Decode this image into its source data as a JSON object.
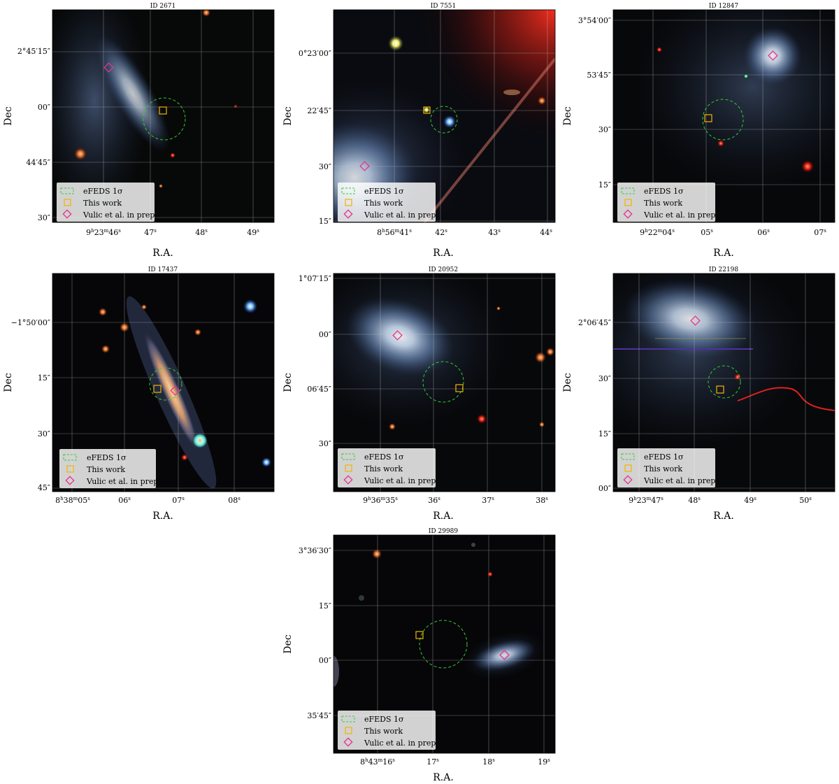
{
  "figure": {
    "axis_x_label": "R.A.",
    "axis_y_label": "Dec",
    "legend": {
      "efeds": "eFEDS 1σ",
      "this_work": "This work",
      "vulic": "Vulic et al. in prep"
    },
    "colors": {
      "efeds": "#33cc33",
      "this_work": "#f0b400",
      "vulic": "#e8338c",
      "grid": "#c8c8c8",
      "background": "#050505"
    },
    "panels": [
      {
        "id_label": "ID 2671",
        "x_ticks": [
          {
            "ra_h": "9",
            "ra_m": "23",
            "ra_s": "46"
          },
          {
            "ra_s": "47"
          },
          {
            "ra_s": "48"
          },
          {
            "ra_s": "49"
          }
        ],
        "y_ticks": [
          "2°45′15″",
          "00″",
          "44′45″",
          "30″"
        ]
      },
      {
        "id_label": "ID 7551",
        "x_ticks": [
          {
            "ra_h": "8",
            "ra_m": "56",
            "ra_s": "41"
          },
          {
            "ra_s": "42"
          },
          {
            "ra_s": "43"
          },
          {
            "ra_s": "44"
          }
        ],
        "y_ticks": [
          "0°23′00″",
          "22′45″",
          "30″",
          "15″"
        ]
      },
      {
        "id_label": "ID 12847",
        "x_ticks": [
          {
            "ra_h": "9",
            "ra_m": "22",
            "ra_s": "04"
          },
          {
            "ra_s": "05"
          },
          {
            "ra_s": "06"
          },
          {
            "ra_s": "07"
          }
        ],
        "y_ticks": [
          "3°54′00″",
          "53′45″",
          "30″",
          "15″"
        ]
      },
      {
        "id_label": "ID 17437",
        "x_ticks": [
          {
            "ra_h": "8",
            "ra_m": "38",
            "ra_s": "05"
          },
          {
            "ra_s": "06"
          },
          {
            "ra_s": "07"
          },
          {
            "ra_s": "08"
          }
        ],
        "y_ticks": [
          "−1°50′00″",
          "15″",
          "30″",
          "45″"
        ]
      },
      {
        "id_label": "ID 20952",
        "x_ticks": [
          {
            "ra_h": "9",
            "ra_m": "36",
            "ra_s": "35"
          },
          {
            "ra_s": "36"
          },
          {
            "ra_s": "37"
          },
          {
            "ra_s": "38"
          }
        ],
        "y_ticks": [
          "1°07′15″",
          "00″",
          "06′45″",
          "30″"
        ]
      },
      {
        "id_label": "ID 22198",
        "x_ticks": [
          {
            "ra_h": "9",
            "ra_m": "23",
            "ra_s": "47"
          },
          {
            "ra_s": "48"
          },
          {
            "ra_s": "49"
          },
          {
            "ra_s": "50"
          }
        ],
        "y_ticks": [
          "2°06′45″",
          "30″",
          "15″",
          "00″"
        ]
      },
      {
        "id_label": "ID 29989",
        "x_ticks": [
          {
            "ra_h": "8",
            "ra_m": "43",
            "ra_s": "16"
          },
          {
            "ra_s": "17"
          },
          {
            "ra_s": "18"
          },
          {
            "ra_s": "19"
          }
        ],
        "y_ticks": [
          "3°36′30″",
          "15″",
          "00″",
          "35′45″"
        ]
      }
    ]
  }
}
